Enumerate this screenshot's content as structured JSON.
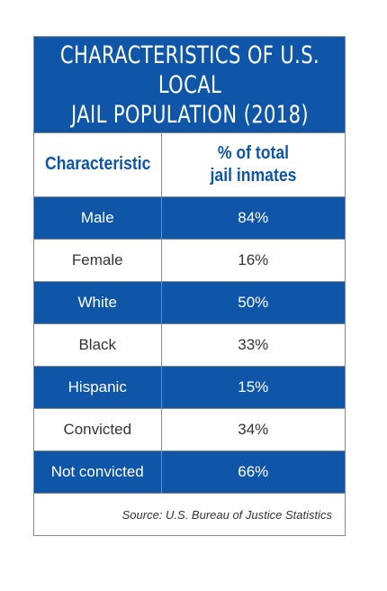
{
  "colors": {
    "accent": "#0f56a8",
    "row_alt": "#ffffff",
    "border": "#8a8a8a"
  },
  "chart_data": {
    "type": "table",
    "title": "CHARACTERISTICS OF U.S. LOCAL\nJAIL POPULATION (2018)",
    "columns": [
      "Characteristic",
      "% of total\njail inmates"
    ],
    "rows": [
      {
        "label": "Male",
        "value": "84%"
      },
      {
        "label": "Female",
        "value": "16%"
      },
      {
        "label": "White",
        "value": "50%"
      },
      {
        "label": "Black",
        "value": "33%"
      },
      {
        "label": "Hispanic",
        "value": "15%"
      },
      {
        "label": "Convicted",
        "value": "34%"
      },
      {
        "label": "Not convicted",
        "value": "66%"
      }
    ],
    "source": "Source: U.S. Bureau of Justice Statistics"
  }
}
